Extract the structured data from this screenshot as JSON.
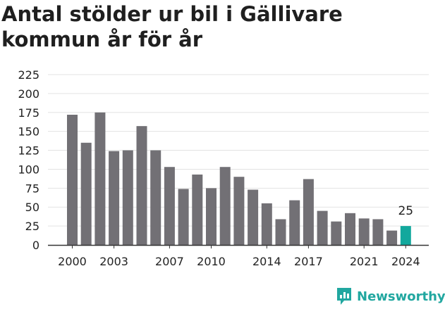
{
  "chart_data": {
    "type": "bar",
    "title": "Antal stölder ur bil i Gällivare kommun år för år",
    "x": [
      2000,
      2001,
      2002,
      2003,
      2004,
      2005,
      2006,
      2007,
      2008,
      2009,
      2010,
      2011,
      2012,
      2013,
      2014,
      2015,
      2016,
      2017,
      2018,
      2019,
      2020,
      2021,
      2022,
      2023,
      2024
    ],
    "values": [
      172,
      135,
      175,
      124,
      125,
      157,
      125,
      103,
      74,
      93,
      75,
      103,
      90,
      73,
      55,
      34,
      59,
      87,
      45,
      31,
      42,
      35,
      34,
      19,
      25
    ],
    "x_tick_labels": [
      "2000",
      "2003",
      "2007",
      "2010",
      "2014",
      "2017",
      "2021",
      "2024"
    ],
    "y_ticks": [
      "0",
      "25",
      "50",
      "75",
      "100",
      "125",
      "150",
      "175",
      "200",
      "225"
    ],
    "ylim": [
      0,
      225
    ],
    "xlabel": "",
    "ylabel": "",
    "grid": true,
    "highlight": {
      "year": 2024,
      "label": "25",
      "color": "#12a89d"
    },
    "bar_color": "#727075",
    "grid_color": "#e3e3e3"
  },
  "brand": {
    "name": "Newsworthy",
    "icon": "newsworthy-logo-icon",
    "color": "#21a7a0"
  }
}
